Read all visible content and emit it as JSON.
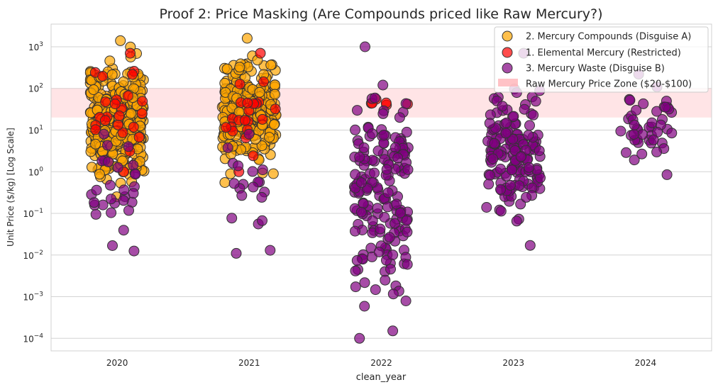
{
  "chart_data": {
    "type": "scatter",
    "title": "Proof 2: Price Masking (Are Compounds priced like Raw Mercury?)",
    "xlabel": "clean_year",
    "ylabel": "Unit Price ($/kg) [Log Scale]",
    "y_scale": "log",
    "ylim": [
      5e-05,
      3500
    ],
    "grid": true,
    "legend_position": "top-right",
    "categories": [
      "2020",
      "2021",
      "2022",
      "2023",
      "2024"
    ],
    "y_ticks": [
      {
        "value": 0.0001,
        "base": "10",
        "exp": "−4"
      },
      {
        "value": 0.001,
        "base": "10",
        "exp": "−3"
      },
      {
        "value": 0.01,
        "base": "10",
        "exp": "−2"
      },
      {
        "value": 0.1,
        "base": "10",
        "exp": "−1"
      },
      {
        "value": 1,
        "base": "10",
        "exp": "0"
      },
      {
        "value": 10,
        "base": "10",
        "exp": "1"
      },
      {
        "value": 100,
        "base": "10",
        "exp": "2"
      },
      {
        "value": 1000,
        "base": "10",
        "exp": "3"
      }
    ],
    "band": {
      "label": "Raw Mercury Price Zone ($20-$100)",
      "y0": 20,
      "y1": 100,
      "color": "#ffb3b8"
    },
    "series": [
      {
        "name": "2. Mercury Compounds (Disguise A)",
        "color": "#ffa500",
        "points": [
          {
            "x": "2020",
            "y_min": 0.25,
            "y_max": 1400,
            "count": 360
          },
          {
            "x": "2021",
            "y_min": 0.55,
            "y_max": 1600,
            "count": 300
          }
        ]
      },
      {
        "name": "1. Elemental Mercury (Restricted)",
        "color": "#ff0000",
        "points": [
          {
            "x": "2020",
            "y_min": 1,
            "y_max": 700,
            "count": 24
          },
          {
            "x": "2021",
            "y_min": 1,
            "y_max": 700,
            "count": 22
          },
          {
            "x": "2022",
            "y_min": 40,
            "y_max": 55,
            "count": 6
          }
        ]
      },
      {
        "name": "3. Mercury Waste (Disguise B)",
        "color": "#800080",
        "points": [
          {
            "x": "2020",
            "y_min": 0.0125,
            "y_max": 8,
            "count": 30
          },
          {
            "x": "2021",
            "y_min": 0.011,
            "y_max": 8,
            "count": 20
          },
          {
            "x": "2022",
            "y_min": 0.0001,
            "y_max": 1000,
            "count": 170
          },
          {
            "x": "2023",
            "y_min": 0.017,
            "y_max": 700,
            "count": 150
          },
          {
            "x": "2024",
            "y_min": 0.85,
            "y_max": 220,
            "count": 45
          }
        ]
      }
    ]
  }
}
